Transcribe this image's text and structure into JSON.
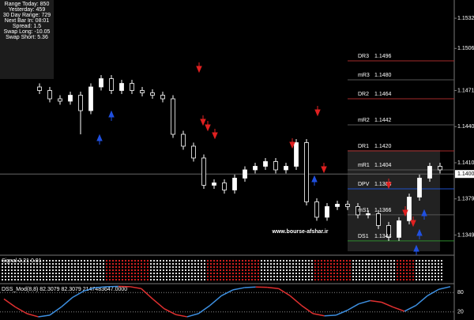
{
  "chart_data": [
    {
      "type": "candlestick",
      "open": [
        1.1474,
        1.1471,
        1.1464,
        1.1462,
        1.1467,
        1.1454,
        1.1474,
        1.1481,
        1.1471,
        1.1477,
        1.1471,
        1.1469,
        1.1467,
        1.1464,
        1.1434,
        1.1424,
        1.1414,
        1.1391,
        1.1393,
        1.1387,
        1.1397,
        1.1404,
        1.1407,
        1.1411,
        1.1404,
        1.1407,
        1.1427,
        1.1377,
        1.1364,
        1.1373,
        1.1375,
        1.1373,
        1.1366,
        1.1367,
        1.1357,
        1.1347,
        1.1361,
        1.1381,
        1.1397,
        1.1407
      ],
      "high": [
        1.1477,
        1.1474,
        1.1467,
        1.147,
        1.147,
        1.1477,
        1.1484,
        1.1484,
        1.148,
        1.148,
        1.1474,
        1.1472,
        1.147,
        1.1467,
        1.1437,
        1.1427,
        1.1417,
        1.1396,
        1.1396,
        1.14,
        1.1407,
        1.141,
        1.1414,
        1.1414,
        1.141,
        1.143,
        1.143,
        1.138,
        1.1376,
        1.1378,
        1.1378,
        1.1376,
        1.137,
        1.137,
        1.136,
        1.1364,
        1.1384,
        1.14,
        1.141,
        1.141
      ],
      "low": [
        1.1468,
        1.1461,
        1.1459,
        1.1459,
        1.1434,
        1.1451,
        1.1471,
        1.1468,
        1.1468,
        1.1468,
        1.1466,
        1.1464,
        1.1461,
        1.1431,
        1.1421,
        1.1411,
        1.1388,
        1.1388,
        1.1384,
        1.1384,
        1.1394,
        1.1401,
        1.1404,
        1.1401,
        1.1401,
        1.1404,
        1.1374,
        1.1361,
        1.1361,
        1.137,
        1.137,
        1.1363,
        1.1363,
        1.1354,
        1.1344,
        1.1344,
        1.1358,
        1.1378,
        1.1394,
        1.1401
      ],
      "close": [
        1.1471,
        1.1464,
        1.1462,
        1.1467,
        1.1454,
        1.1474,
        1.1481,
        1.1471,
        1.1477,
        1.1471,
        1.1469,
        1.1467,
        1.1464,
        1.1434,
        1.1424,
        1.1414,
        1.1391,
        1.1393,
        1.1387,
        1.1397,
        1.1404,
        1.1407,
        1.1411,
        1.1404,
        1.1407,
        1.1427,
        1.1377,
        1.1364,
        1.1373,
        1.1375,
        1.1373,
        1.1366,
        1.1367,
        1.1357,
        1.1347,
        1.1361,
        1.1381,
        1.1397,
        1.1407,
        1.1404
      ],
      "up_color": "#ffffff",
      "down_color": "#000000",
      "ylim": [
        1.13326,
        1.15474
      ],
      "yticks": [
        {
          "value": 1.1532,
          "label": "1.15320"
        },
        {
          "value": 1.15065,
          "label": "1.15065"
        },
        {
          "value": 1.1471,
          "label": "1.14710"
        },
        {
          "value": 1.14405,
          "label": "1.14405"
        },
        {
          "value": 1.141,
          "label": "1.14100"
        },
        {
          "value": 1.13795,
          "label": "1.13795"
        },
        {
          "value": 1.1349,
          "label": "1.13490"
        }
      ],
      "current_price": {
        "value": 1.14005,
        "label": "1.14005"
      },
      "levels": [
        {
          "name": "DR3",
          "price": 1.1496,
          "color": "#a52a2a"
        },
        {
          "name": "mR3",
          "price": {
            "value": 1.148,
            "label": "1.1480"
          },
          "color": "#555555"
        },
        {
          "name": "DR2",
          "price": 1.1464,
          "color": "#a52a2a"
        },
        {
          "name": "mR2",
          "price": 1.1442,
          "color": "#555555"
        },
        {
          "name": "DR1",
          "price": {
            "value": 1.142,
            "label": "1.1420"
          },
          "color": "#a52a2a"
        },
        {
          "name": "mR1",
          "price": 1.1404,
          "color": "#555555"
        },
        {
          "name": "DPV",
          "price": 1.1388,
          "color": "#1e50c8"
        },
        {
          "name": "mS1",
          "price": 1.1366,
          "color": "#555555"
        },
        {
          "name": "DS1",
          "price": 1.1344,
          "color": "#2e8b2e"
        }
      ],
      "watermark": "www.bourse-afshar.ir"
    },
    {
      "type": "line",
      "title": "DSS_Mod(8,8) 82.3079 82.3079 2147483647.0000",
      "values": [
        60,
        35,
        15,
        5,
        10,
        35,
        65,
        85,
        95,
        98,
        99,
        98,
        92,
        60,
        30,
        12,
        5,
        15,
        40,
        70,
        88,
        95,
        97,
        96,
        92,
        70,
        40,
        15,
        8,
        10,
        25,
        45,
        55,
        50,
        35,
        22,
        40,
        70,
        90,
        98
      ],
      "up_color": "#3d8fe0",
      "down_color": "#e03030",
      "ylim": [
        0,
        100
      ],
      "yticks": [
        80,
        20
      ]
    }
  ],
  "info_panel": [
    "Range Today: 850",
    "Yesterday: 459",
    "30 Day Range: 729",
    "Next Bar In: 08:01",
    "Spread: 1.5",
    "Swap Long: -10.05",
    "Swap Short: 5.36"
  ],
  "indicator_panel": {
    "label": "Signal 2.21 0.01"
  }
}
